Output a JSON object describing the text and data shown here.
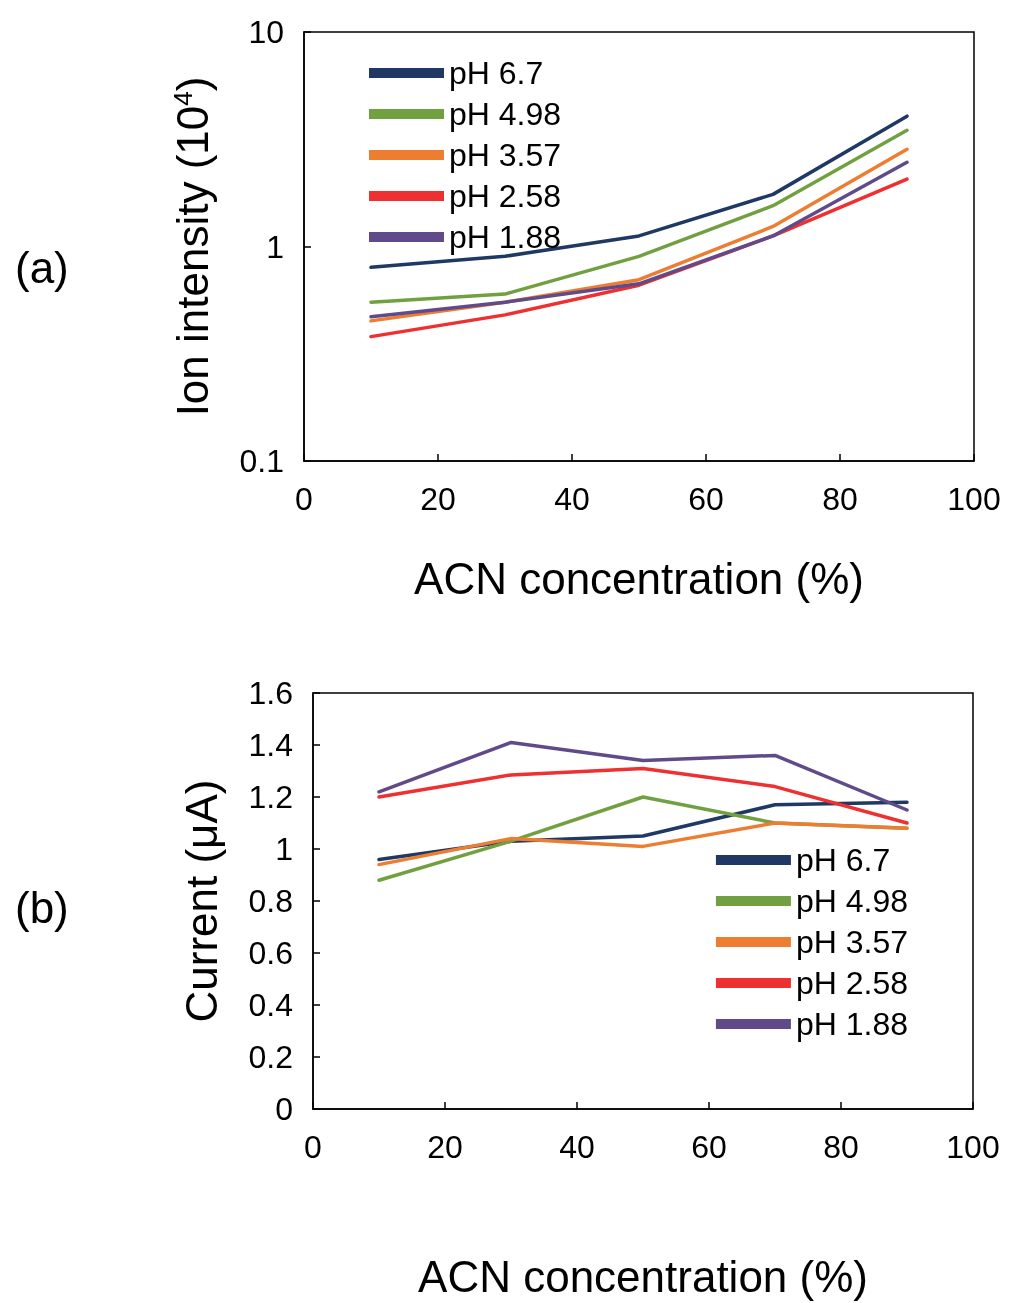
{
  "chart_data": [
    {
      "type": "line",
      "title": "(a)",
      "xlabel": "ACN concentration (%)",
      "ylabel": "Ion intensity (10$^{4}$)",
      "x": [
        10,
        30,
        50,
        70,
        90
      ],
      "xlim": [
        0,
        100
      ],
      "xticks": [
        0,
        20,
        40,
        60,
        80,
        100
      ],
      "ylim": [
        0.1,
        10
      ],
      "yticks": [
        0.1,
        1,
        10
      ],
      "log": true,
      "grid": false,
      "legend": "top left",
      "marker": "none",
      "line_style": "solid",
      "series": [
        {
          "name": "pH 6.7",
          "color": "#1f3864",
          "values": [
            0.8,
            0.9,
            1.12,
            1.75,
            4.05
          ]
        },
        {
          "name": "pH 4.98",
          "color": "#70a040",
          "values": [
            0.55,
            0.6,
            0.9,
            1.55,
            3.48
          ]
        },
        {
          "name": "pH 3.57",
          "color": "#ed7d31",
          "values": [
            0.45,
            0.55,
            0.7,
            1.24,
            2.84
          ]
        },
        {
          "name": "pH 2.58",
          "color": "#ee3030",
          "values": [
            0.38,
            0.48,
            0.66,
            1.12,
            2.06
          ]
        },
        {
          "name": "pH 1.88",
          "color": "#604a8a",
          "values": [
            0.47,
            0.55,
            0.67,
            1.12,
            2.47
          ]
        }
      ]
    },
    {
      "type": "line",
      "title": "(b)",
      "xlabel": "ACN concentration (%)",
      "ylabel": "Current (μA)",
      "x": [
        10,
        30,
        50,
        70,
        90
      ],
      "xlim": [
        0,
        100
      ],
      "xticks": [
        0,
        20,
        40,
        60,
        80,
        100
      ],
      "ylim": [
        0,
        1.6
      ],
      "yticks": [
        0,
        0.2,
        0.4,
        0.6,
        0.8,
        1,
        1.2,
        1.4,
        1.6
      ],
      "grid": false,
      "legend": "bottom right",
      "marker": "none",
      "line_style": "solid",
      "series": [
        {
          "name": "pH 6.7",
          "color": "#1f3864",
          "values": [
            0.96,
            1.03,
            1.05,
            1.17,
            1.18
          ]
        },
        {
          "name": "pH 4.98",
          "color": "#70a040",
          "values": [
            0.88,
            1.03,
            1.2,
            1.1,
            1.08
          ]
        },
        {
          "name": "pH 3.57",
          "color": "#ed7d31",
          "values": [
            0.94,
            1.04,
            1.01,
            1.1,
            1.08
          ]
        },
        {
          "name": "pH 2.58",
          "color": "#ee3030",
          "values": [
            1.2,
            1.285,
            1.31,
            1.24,
            1.1
          ]
        },
        {
          "name": "pH 1.88",
          "color": "#604a8a",
          "values": [
            1.22,
            1.41,
            1.34,
            1.36,
            1.15
          ]
        }
      ]
    }
  ]
}
